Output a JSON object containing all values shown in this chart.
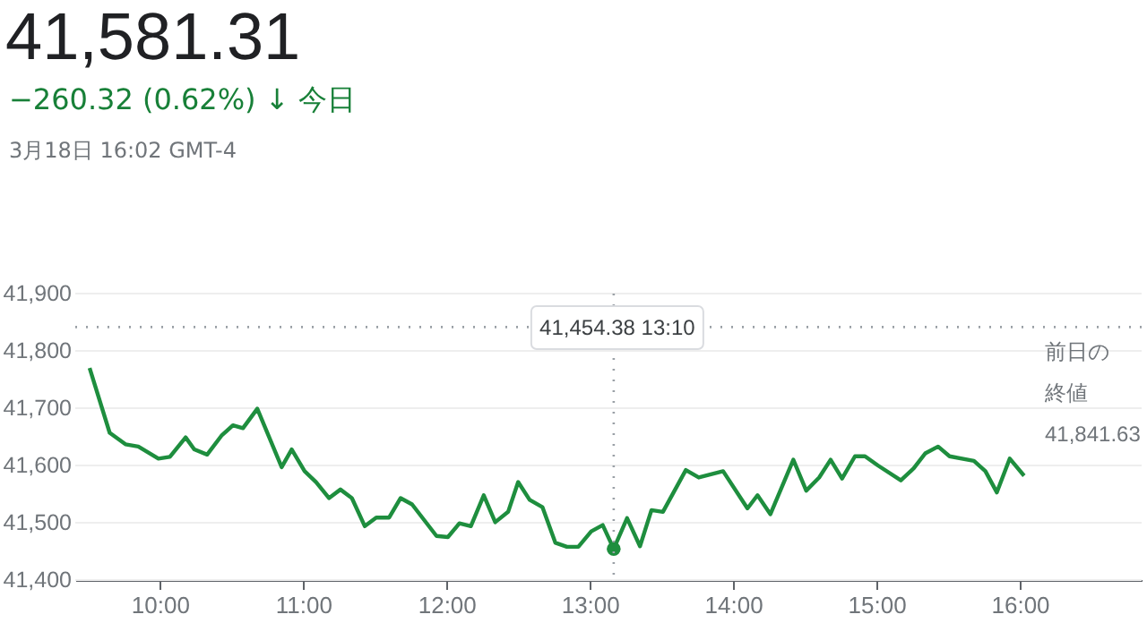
{
  "chart_data": {
    "type": "line",
    "title": "41,581.31",
    "subtitle": "−260.32 (0.62%) ↓ 今日",
    "annotations": [
      "3月18日 16:02 GMT-4"
    ],
    "x": [
      9.51,
      9.65,
      9.76,
      9.85,
      9.99,
      10.07,
      10.18,
      10.24,
      10.33,
      10.43,
      10.51,
      10.58,
      10.68,
      10.85,
      10.92,
      11.01,
      11.09,
      11.18,
      11.26,
      11.34,
      11.43,
      11.51,
      11.6,
      11.68,
      11.76,
      11.93,
      12.01,
      12.09,
      12.17,
      12.26,
      12.34,
      12.43,
      12.5,
      12.58,
      12.67,
      12.76,
      12.84,
      12.92,
      13.01,
      13.09,
      13.1667,
      13.26,
      13.35,
      13.43,
      13.51,
      13.67,
      13.76,
      13.93,
      14.1,
      14.17,
      14.26,
      14.42,
      14.51,
      14.6,
      14.68,
      14.76,
      14.85,
      14.92,
      15.01,
      15.17,
      15.26,
      15.34,
      15.43,
      15.51,
      15.68,
      15.76,
      15.84,
      15.93,
      16.03
    ],
    "series": [
      {
        "color": "#1e8e3e",
        "values": [
          41770,
          41657,
          41637,
          41633,
          41612,
          41615,
          41649,
          41628,
          41619,
          41652,
          41670,
          41665,
          41699,
          41597,
          41628,
          41590,
          41571,
          41543,
          41558,
          41543,
          41494,
          41509,
          41509,
          41543,
          41532,
          41477,
          41475,
          41499,
          41494,
          41548,
          41501,
          41519,
          41571,
          41540,
          41527,
          41465,
          41458,
          41458,
          41485,
          41496,
          41454.38,
          41508,
          41459,
          41522,
          41519,
          41592,
          41579,
          41590,
          41525,
          41548,
          41515,
          41610,
          41556,
          41579,
          41610,
          41577,
          41616,
          41616,
          41600,
          41574,
          41595,
          41621,
          41633,
          41616,
          41608,
          41590,
          41553,
          41612,
          41582
        ]
      },
      {
        "type": "scatter",
        "color": "#1e8e3e",
        "marker": "circle",
        "x": [
          13.1667
        ],
        "values": [
          41454.38
        ]
      }
    ],
    "xlim": [
      9.41,
      16.85
    ],
    "xticks": [
      {
        "value": 10,
        "label": "10:00"
      },
      {
        "value": 11,
        "label": "11:00"
      },
      {
        "value": 12,
        "label": "12:00"
      },
      {
        "value": 13,
        "label": "13:00"
      },
      {
        "value": 14,
        "label": "14:00"
      },
      {
        "value": 15,
        "label": "15:00"
      },
      {
        "value": 16,
        "label": "16:00"
      }
    ],
    "ylim": [
      41400,
      41900
    ],
    "yticks": [
      {
        "value": 41400,
        "label": "41,400"
      },
      {
        "value": 41500,
        "label": "41,500"
      },
      {
        "value": 41600,
        "label": "41,600"
      },
      {
        "value": 41700,
        "label": "41,700"
      },
      {
        "value": 41800,
        "label": "41,800"
      },
      {
        "value": 41900,
        "label": "41,900"
      }
    ],
    "grid": "y",
    "ref_lines": [
      {
        "axis": "y",
        "value": 41841.63,
        "label": "前日の終値 41,841.63",
        "line_style": "dotted"
      },
      {
        "axis": "x",
        "value": 13.1667,
        "label": "41,454.38  13:10",
        "line_style": "dotted"
      }
    ]
  }
}
